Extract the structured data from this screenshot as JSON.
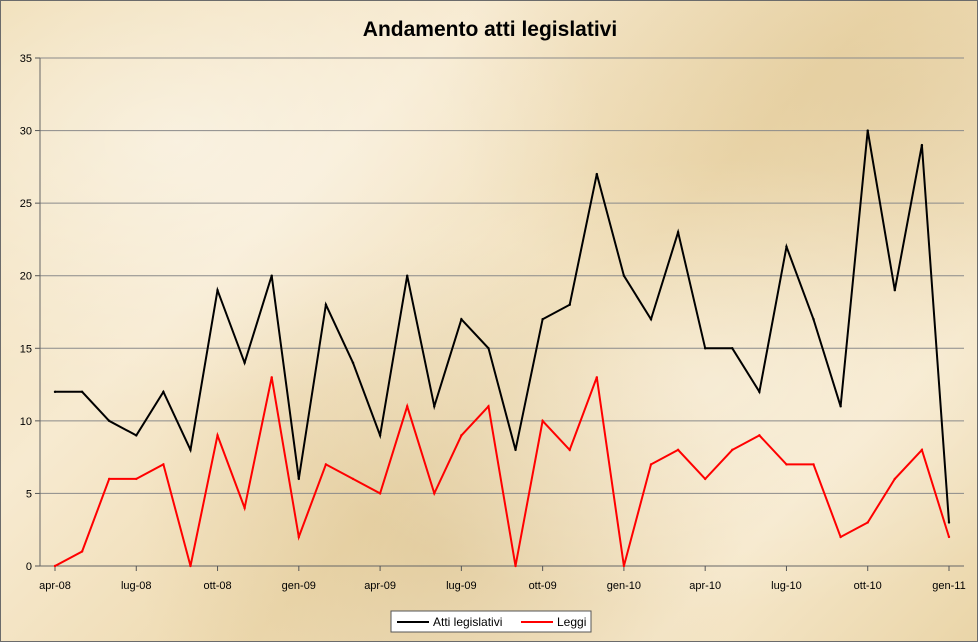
{
  "chart_data": {
    "type": "line",
    "title": "Andamento atti legislativi",
    "xlabel": "",
    "ylabel": "",
    "ylim": [
      0,
      35
    ],
    "yticks": [
      0,
      5,
      10,
      15,
      20,
      25,
      30,
      35
    ],
    "x": [
      "apr-08",
      "mag-08",
      "giu-08",
      "lug-08",
      "ago-08",
      "set-08",
      "ott-08",
      "nov-08",
      "dic-08",
      "gen-09",
      "feb-09",
      "mar-09",
      "apr-09",
      "mag-09",
      "giu-09",
      "lug-09",
      "ago-09",
      "set-09",
      "ott-09",
      "nov-09",
      "dic-09",
      "gen-10",
      "feb-10",
      "mar-10",
      "apr-10",
      "mag-10",
      "giu-10",
      "lug-10",
      "ago-10",
      "set-10",
      "ott-10",
      "nov-10",
      "dic-10",
      "gen-11"
    ],
    "xtick_labels": [
      {
        "index": 0,
        "label": "apr-08"
      },
      {
        "index": 3,
        "label": "lug-08"
      },
      {
        "index": 6,
        "label": "ott-08"
      },
      {
        "index": 9,
        "label": "gen-09"
      },
      {
        "index": 12,
        "label": "apr-09"
      },
      {
        "index": 15,
        "label": "lug-09"
      },
      {
        "index": 18,
        "label": "ott-09"
      },
      {
        "index": 21,
        "label": "gen-10"
      },
      {
        "index": 24,
        "label": "apr-10"
      },
      {
        "index": 27,
        "label": "lug-10"
      },
      {
        "index": 30,
        "label": "ott-10"
      },
      {
        "index": 33,
        "label": "gen-11"
      }
    ],
    "series": [
      {
        "name": "Atti legislativi",
        "color": "#000000",
        "points": [
          {
            "x": "apr-08",
            "y": 12
          },
          {
            "x": "apr-08/mag-08",
            "y": 12
          },
          {
            "x": "mag-08/giu-08",
            "y": 10
          },
          {
            "x": "lug-08",
            "y": 9
          },
          {
            "x": "ago-08",
            "y": 12
          },
          {
            "x": "set-08",
            "y": 8
          },
          {
            "x": "ott-08",
            "y": 19
          },
          {
            "x": "nov-08",
            "y": 14
          },
          {
            "x": "dic-08",
            "y": 20
          },
          {
            "x": "gen-09",
            "y": 6
          },
          {
            "x": "feb-09",
            "y": 18
          },
          {
            "x": "mar-09",
            "y": 14
          },
          {
            "x": "apr-09",
            "y": 9
          },
          {
            "x": "mag-09",
            "y": 20
          },
          {
            "x": "giu-09",
            "y": 11
          },
          {
            "x": "lug-09",
            "y": 17
          },
          {
            "x": "ago-09",
            "y": 15
          },
          {
            "x": "set-09",
            "y": 8
          },
          {
            "x": "ott-09",
            "y": 17
          },
          {
            "x": "nov-09",
            "y": 18
          },
          {
            "x": "dic-09",
            "y": 27
          },
          {
            "x": "gen-10",
            "y": 20
          },
          {
            "x": "feb-10",
            "y": 17
          },
          {
            "x": "mar-10",
            "y": 23
          },
          {
            "x": "apr-10",
            "y": 15
          },
          {
            "x": "mag-10",
            "y": 15
          },
          {
            "x": "giu-10",
            "y": 12
          },
          {
            "x": "lug-10",
            "y": 22
          },
          {
            "x": "ago-10",
            "y": 17
          },
          {
            "x": "set-10",
            "y": 11
          },
          {
            "x": "ott-10",
            "y": 30
          },
          {
            "x": "nov-10",
            "y": 19
          },
          {
            "x": "dic-10",
            "y": 29
          },
          {
            "x": "gen-11",
            "y": 3
          }
        ]
      },
      {
        "name": "Leggi",
        "color": "#ff0000",
        "points": [
          {
            "x": "apr-08",
            "y": 0
          },
          {
            "x": "apr-08/mag-08",
            "y": 1
          },
          {
            "x": "mag-08/giu-08",
            "y": 6
          },
          {
            "x": "lug-08",
            "y": 6
          },
          {
            "x": "ago-08",
            "y": 7
          },
          {
            "x": "set-08",
            "y": 0
          },
          {
            "x": "ott-08",
            "y": 9
          },
          {
            "x": "nov-08",
            "y": 4
          },
          {
            "x": "dic-08",
            "y": 13
          },
          {
            "x": "gen-09",
            "y": 2
          },
          {
            "x": "feb-09",
            "y": 7
          },
          {
            "x": "mar-09",
            "y": 6
          },
          {
            "x": "apr-09",
            "y": 5
          },
          {
            "x": "mag-09",
            "y": 11
          },
          {
            "x": "giu-09",
            "y": 5
          },
          {
            "x": "lug-09",
            "y": 9
          },
          {
            "x": "ago-09",
            "y": 11
          },
          {
            "x": "set-09",
            "y": 0
          },
          {
            "x": "ott-09",
            "y": 10
          },
          {
            "x": "nov-09",
            "y": 8
          },
          {
            "x": "dic-09",
            "y": 13
          },
          {
            "x": "gen-10",
            "y": 0
          },
          {
            "x": "feb-10",
            "y": 7
          },
          {
            "x": "mar-10",
            "y": 8
          },
          {
            "x": "apr-10",
            "y": 6
          },
          {
            "x": "mag-10",
            "y": 8
          },
          {
            "x": "giu-10",
            "y": 9
          },
          {
            "x": "lug-10",
            "y": 7
          },
          {
            "x": "ago-10",
            "y": 7
          },
          {
            "x": "set-10",
            "y": 2
          },
          {
            "x": "ott-10",
            "y": 3
          },
          {
            "x": "nov-10",
            "y": 6
          },
          {
            "x": "dic-10",
            "y": 8
          },
          {
            "x": "gen-11",
            "y": 2
          }
        ]
      }
    ],
    "grid": {
      "horizontal": true,
      "vertical": false
    },
    "legend_position": "bottom"
  }
}
